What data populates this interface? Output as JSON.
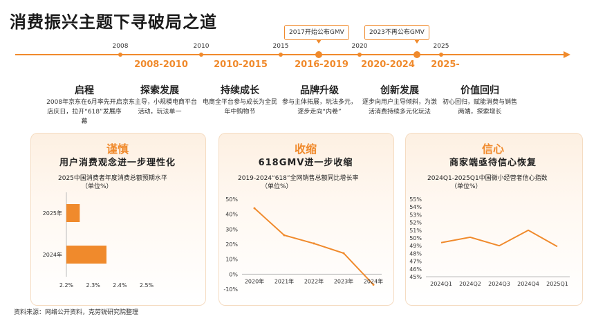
{
  "title": "消费振兴主题下寻破局之道",
  "timeline": {
    "years": [
      "2008",
      "2010",
      "2015",
      "2020",
      "2025"
    ],
    "callouts": [
      "2017开始公布GMV",
      "2023不再公布GMV"
    ],
    "stages": [
      "2008-2010",
      "2010-2015",
      "2016-2019",
      "2020-2024",
      "2025-"
    ],
    "phases": [
      {
        "title": "启程",
        "desc": "2008年京东在6月率先开启店庆日，拉开“618”发展序幕"
      },
      {
        "title": "探索发展",
        "desc": "京东主导，小规模电商平台活动，玩法单一"
      },
      {
        "title": "持续成长",
        "desc": "电商全平台参与成长为全民年中购物节"
      },
      {
        "title": "品牌升级",
        "desc": "参与主体拓展，玩法多元，逐步走向“内卷”"
      },
      {
        "title": "创新发展",
        "desc": "逐步向用户主导倾斜，为激活消费持续多元化玩法"
      },
      {
        "title": "价值回归",
        "desc": "初心回归，赋能消费与销售两端，探索增长"
      }
    ]
  },
  "cards": [
    {
      "title": "谨慎",
      "subtitle": "用户消费观念进一步理性化",
      "chart_title_1": "2025中国消费者年度消费总额预期水平",
      "chart_title_2": "（单位%）"
    },
    {
      "title": "收缩",
      "subtitle": "618GMV进一步收缩",
      "chart_title_1": "2019-2024“618”全网销售总额同比增长率",
      "chart_title_2": "（单位%）"
    },
    {
      "title": "信心",
      "subtitle": "商家端亟待信心恢复",
      "chart_title_1": "2024Q1-2025Q1中国微小经营者信心指数",
      "chart_title_2": "（单位%）"
    }
  ],
  "chart_data": [
    {
      "type": "bar",
      "orientation": "horizontal",
      "title": "2025中国消费者年度消费总额预期水平",
      "unit": "（单位%）",
      "categories": [
        "2025年",
        "2024年"
      ],
      "values": [
        2.25,
        2.35
      ],
      "xlim": [
        2.2,
        2.5
      ],
      "xticks": [
        "2.2%",
        "2.3%",
        "2.4%",
        "2.5%"
      ],
      "color": "#f08a2c"
    },
    {
      "type": "line",
      "title": "2019-2024“618”全网销售总额同比增长率",
      "unit": "（单位%）",
      "categories": [
        "2020年",
        "2021年",
        "2022年",
        "2023年",
        "2024年"
      ],
      "values": [
        44,
        26,
        20.5,
        14,
        -7
      ],
      "ylim": [
        -10,
        50
      ],
      "yticks": [
        "-10%",
        "0%",
        "10%",
        "20%",
        "30%",
        "40%",
        "50%"
      ],
      "color": "#f08a2c"
    },
    {
      "type": "line",
      "title": "2024Q1-2025Q1中国微小经营者信心指数",
      "unit": "（单位%）",
      "categories": [
        "2024Q1",
        "2024Q2",
        "2024Q3",
        "2024Q4",
        "2025Q1"
      ],
      "values": [
        49.4,
        50.1,
        49.0,
        51.0,
        48.9
      ],
      "ylim": [
        45,
        55
      ],
      "yticks": [
        "45%",
        "46%",
        "47%",
        "48%",
        "49%",
        "50%",
        "51%",
        "52%",
        "53%",
        "54%",
        "55%"
      ],
      "color": "#f08a2c"
    }
  ],
  "source": "资料来源：网络公开资料，克劳锐研究院整理"
}
